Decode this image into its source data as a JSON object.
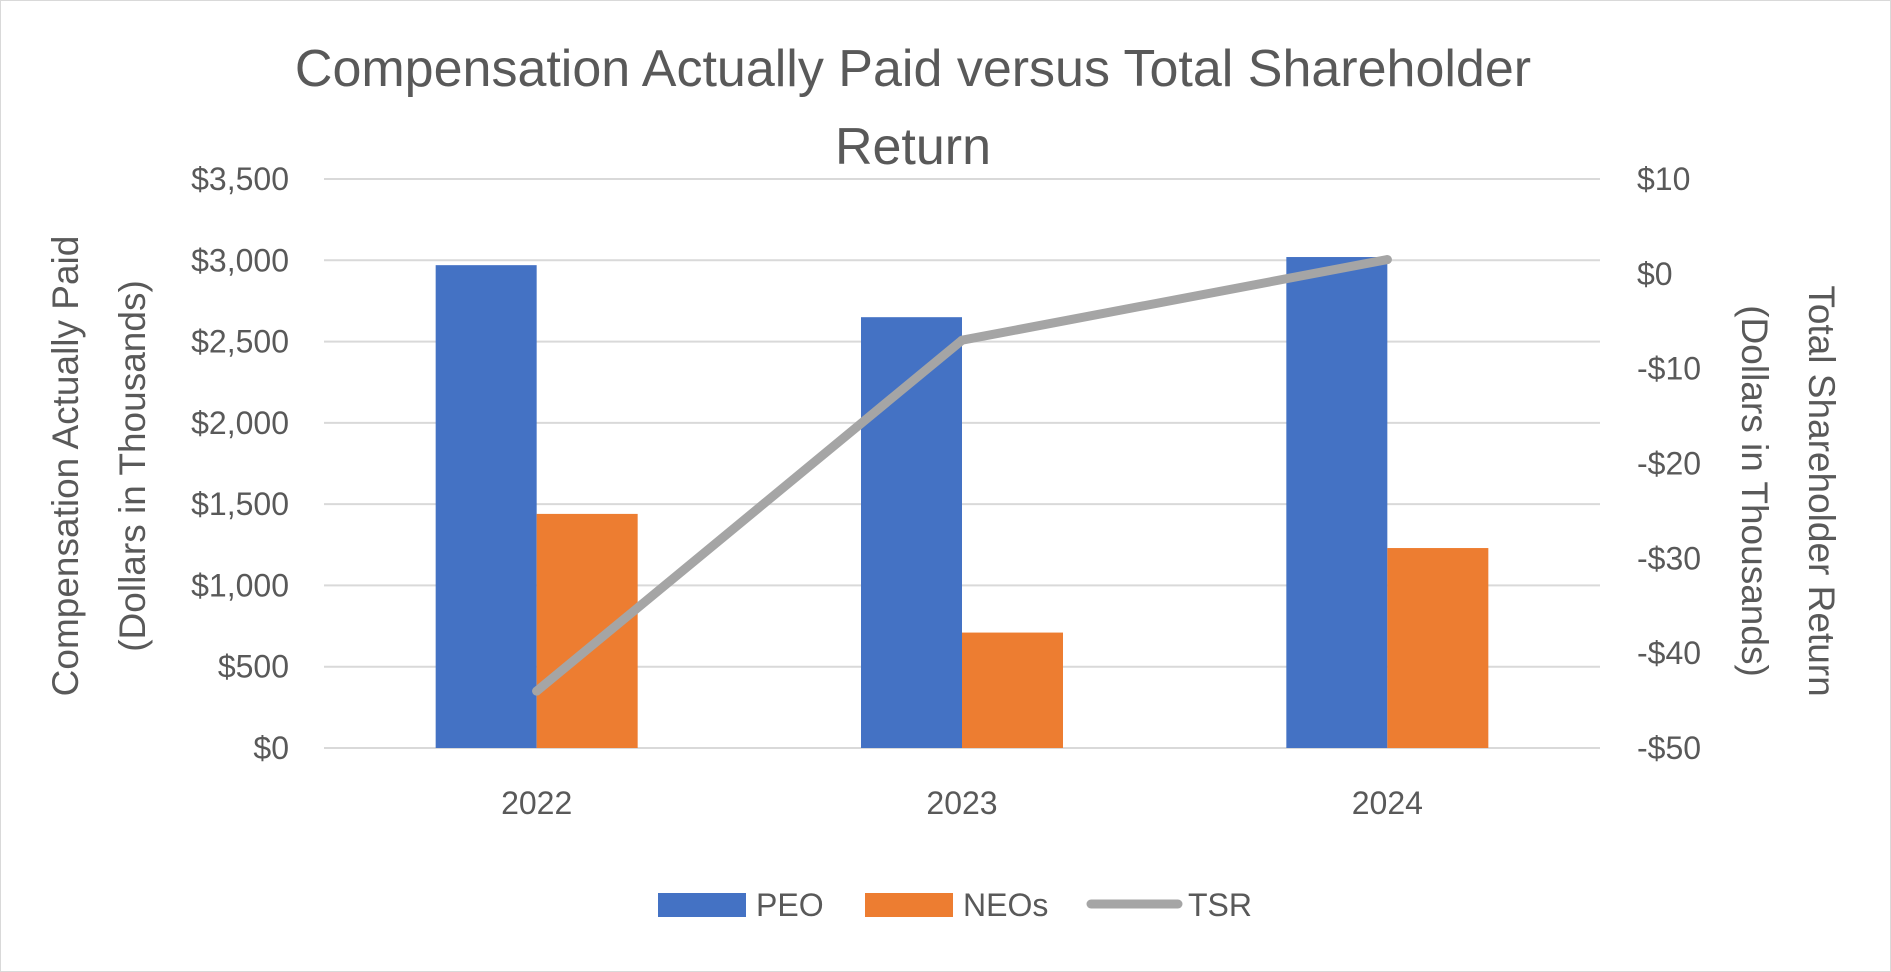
{
  "chart_data": {
    "type": "bar",
    "title": "Compensation Actually Paid versus Total Shareholder Return",
    "title_lines": [
      "Compensation Actually Paid versus Total Shareholder",
      "Return"
    ],
    "categories": [
      "2022",
      "2023",
      "2024"
    ],
    "series": [
      {
        "name": "PEO",
        "type": "bar",
        "axis": "left",
        "color": "#4472C4",
        "values": [
          2970,
          2650,
          3020
        ]
      },
      {
        "name": "NEOs",
        "type": "bar",
        "axis": "left",
        "color": "#ED7D31",
        "values": [
          1440,
          710,
          1230
        ]
      },
      {
        "name": "TSR",
        "type": "line",
        "axis": "right",
        "color": "#A5A5A5",
        "values": [
          -44,
          -7,
          1.5
        ]
      }
    ],
    "y_left": {
      "title_lines": [
        "Compensation Actually Paid",
        "(Dollars in Thousands)"
      ],
      "ylim": [
        0,
        3500
      ],
      "ticks": [
        0,
        500,
        1000,
        1500,
        2000,
        2500,
        3000,
        3500
      ],
      "tick_labels": [
        "$0",
        "$500",
        "$1,000",
        "$1,500",
        "$2,000",
        "$2,500",
        "$3,000",
        "$3,500"
      ]
    },
    "y_right": {
      "title_lines": [
        "Total Shareholder Return",
        "(Dollars in Thousands)"
      ],
      "ylim": [
        -50,
        10
      ],
      "ticks": [
        -50,
        -40,
        -30,
        -20,
        -10,
        0,
        10
      ],
      "tick_labels": [
        "-$50",
        "-$40",
        "-$30",
        "-$20",
        "-$10",
        "$0",
        "$10"
      ]
    },
    "grid": true,
    "legend": {
      "position": "bottom",
      "entries": [
        "PEO",
        "NEOs",
        "TSR"
      ]
    }
  }
}
